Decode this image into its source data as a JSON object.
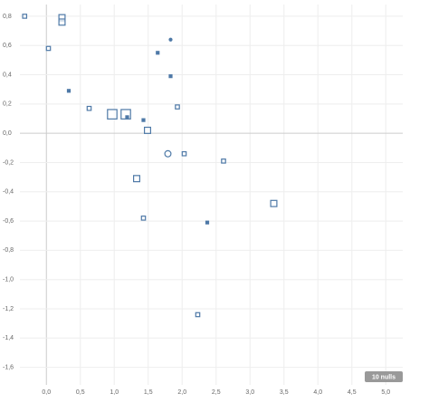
{
  "chart_data": {
    "type": "scatter",
    "x": [
      -0.32,
      0.23,
      0.23,
      0.03,
      0.33,
      0.63,
      0.97,
      1.17,
      1.19,
      1.43,
      1.49,
      1.64,
      1.83,
      1.83,
      1.93,
      1.79,
      2.03,
      1.33,
      1.43,
      2.61,
      2.37,
      3.35,
      2.23
    ],
    "values": [
      0.8,
      0.79,
      0.76,
      0.58,
      0.29,
      0.17,
      0.13,
      0.13,
      0.11,
      0.09,
      0.02,
      0.55,
      0.64,
      0.39,
      0.18,
      -0.14,
      -0.14,
      -0.31,
      -0.58,
      -0.19,
      -0.61,
      -0.48,
      -1.24
    ],
    "sizes": [
      2,
      3,
      3,
      2,
      1,
      2,
      4,
      4,
      1,
      1,
      3,
      1,
      1,
      1,
      2,
      3,
      2,
      3,
      2,
      2,
      1,
      3,
      2
    ],
    "shapes": [
      "square",
      "square",
      "square",
      "square",
      "square",
      "square",
      "square",
      "square",
      "square",
      "square",
      "square",
      "square",
      "circle",
      "square",
      "square",
      "circle",
      "square",
      "square",
      "square",
      "square",
      "square",
      "square",
      "square"
    ],
    "color": "#4e79a7",
    "xlim": [
      -0.39,
      5.25
    ],
    "ylim": [
      -1.72,
      0.88
    ],
    "xticks": [
      {
        "value": 0,
        "label": "0,0"
      },
      {
        "value": 0.5,
        "label": "0,5"
      },
      {
        "value": 1,
        "label": "1,0"
      },
      {
        "value": 1.5,
        "label": "1,5"
      },
      {
        "value": 2,
        "label": "2,0"
      },
      {
        "value": 2.5,
        "label": "2,5"
      },
      {
        "value": 3,
        "label": "3,0"
      },
      {
        "value": 3.5,
        "label": "3,5"
      },
      {
        "value": 4,
        "label": "4,0"
      },
      {
        "value": 4.5,
        "label": "4,5"
      },
      {
        "value": 5,
        "label": "5,0"
      }
    ],
    "yticks": [
      {
        "value": 0.8,
        "label": "0,8"
      },
      {
        "value": 0.6,
        "label": "0,6"
      },
      {
        "value": 0.4,
        "label": "0,4"
      },
      {
        "value": 0.2,
        "label": "0,2"
      },
      {
        "value": 0,
        "label": "0,0"
      },
      {
        "value": -0.2,
        "label": "-0,2"
      },
      {
        "value": -0.4,
        "label": "-0,4"
      },
      {
        "value": -0.6,
        "label": "-0,6"
      },
      {
        "value": -0.8,
        "label": "-0,8"
      },
      {
        "value": -1,
        "label": "-1,0"
      },
      {
        "value": -1.2,
        "label": "-1,2"
      },
      {
        "value": -1.4,
        "label": "-1,4"
      },
      {
        "value": -1.6,
        "label": "-1,6"
      }
    ],
    "grid": true,
    "annotation": "10 nulls"
  }
}
